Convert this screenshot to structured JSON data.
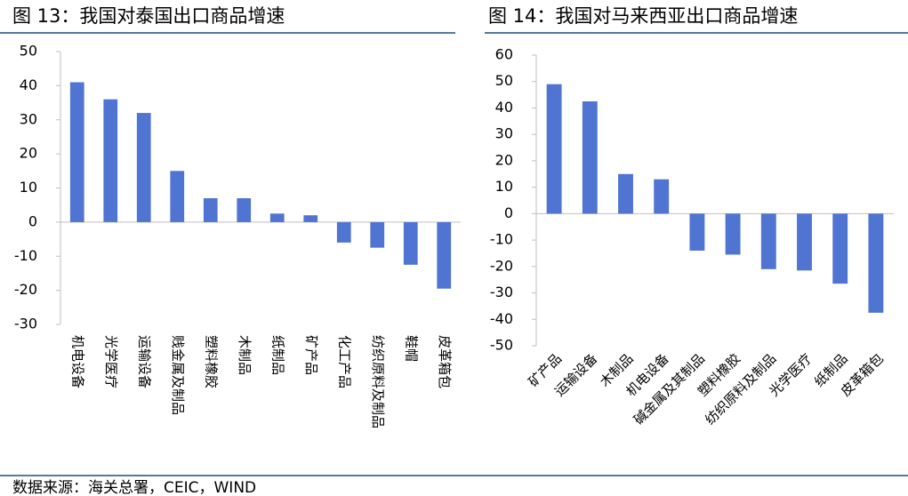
{
  "chart_data": [
    {
      "type": "bar",
      "title": "图 13：我国对泰国出口商品增速",
      "categories": [
        "机电设备",
        "光学医疗",
        "运输设备",
        "贱金属及制品",
        "塑料橡胶",
        "木制品",
        "纸制品",
        "矿产品",
        "化工产品",
        "纺织原料及制品",
        "鞋帽",
        "皮革箱包"
      ],
      "values": [
        41,
        36,
        32,
        15,
        7,
        7,
        2.5,
        2,
        -6,
        -7.5,
        -12.5,
        -19.5
      ],
      "color": "#4f74d2",
      "ylim": [
        -30,
        50
      ],
      "yticks": [
        -30,
        -20,
        -10,
        0,
        10,
        20,
        30,
        40,
        50
      ],
      "grid": false,
      "label_rotation": 90
    },
    {
      "type": "bar",
      "title": "图 14：我国对马来西亚出口商品增速",
      "categories": [
        "矿产品",
        "运输设备",
        "木制品",
        "机电设备",
        "碱金属及其制品",
        "塑料橡胶",
        "纺织原料及制品",
        "光学医疗",
        "纸制品",
        "皮革箱包"
      ],
      "values": [
        49,
        42.5,
        15,
        13,
        -14,
        -15.5,
        -21,
        -21.5,
        -26.5,
        -37.5
      ],
      "color": "#4f74d2",
      "ylim": [
        -50,
        60
      ],
      "yticks": [
        -50,
        -40,
        -30,
        -20,
        -10,
        0,
        10,
        20,
        30,
        40,
        50,
        60
      ],
      "grid": false,
      "label_rotation": -45
    }
  ],
  "source": "数据来源：海关总署，CEIC，WIND"
}
